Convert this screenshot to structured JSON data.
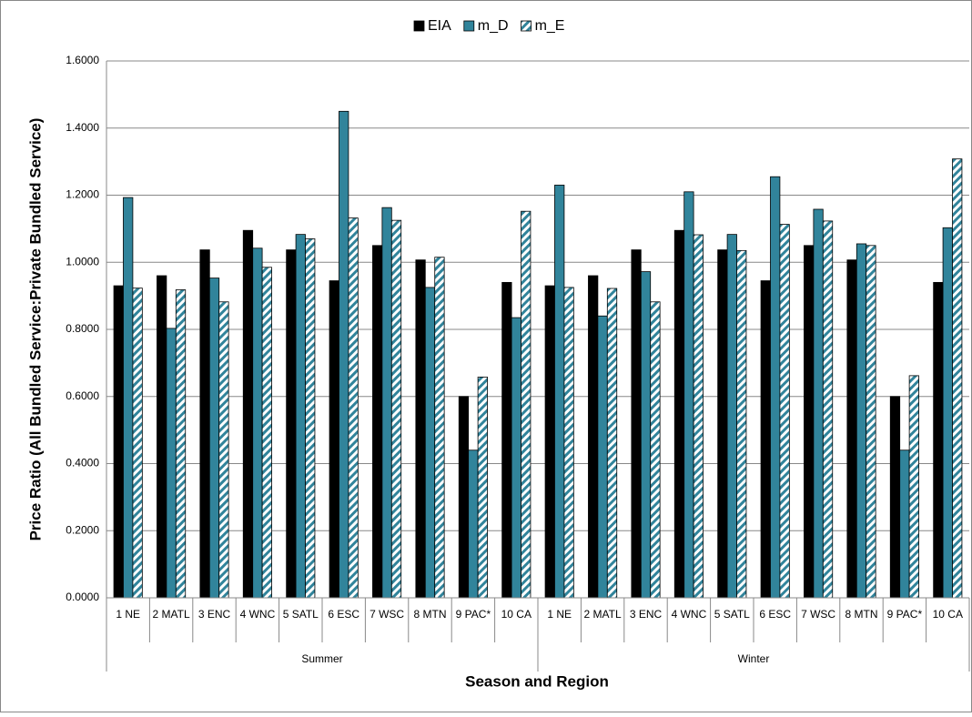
{
  "chart_data": {
    "type": "bar",
    "x_label": "Season and Region",
    "y_label": "Price Ratio (All Bundled Service:Private Bundled Service)",
    "x_groups": [
      "Summer",
      "Winter"
    ],
    "categories": [
      "1 NE",
      "2 MATL",
      "3 ENC",
      "4 WNC",
      "5 SATL",
      "6 ESC",
      "7 WSC",
      "8 MTN",
      "9 PAC*",
      "10 CA",
      "1 NE",
      "2 MATL",
      "3 ENC",
      "4 WNC",
      "5 SATL",
      "6 ESC",
      "7 WSC",
      "8 MTN",
      "9 PAC*",
      "10 CA"
    ],
    "series": [
      {
        "name": "EIA",
        "color": "#000000",
        "values": [
          0.93,
          0.96,
          1.037,
          1.095,
          1.037,
          0.945,
          1.05,
          1.007,
          0.6,
          0.94,
          0.93,
          0.96,
          1.037,
          1.095,
          1.037,
          0.945,
          1.05,
          1.007,
          0.6,
          0.94
        ]
      },
      {
        "name": "m_D",
        "color": "#31849b",
        "values": [
          1.193,
          0.803,
          0.953,
          1.042,
          1.083,
          1.45,
          1.163,
          0.925,
          0.44,
          0.835,
          1.23,
          0.84,
          0.972,
          1.21,
          1.083,
          1.255,
          1.158,
          1.055,
          0.44,
          1.103
        ]
      },
      {
        "name": "m_E",
        "color": "#31849b",
        "pattern": "hatch",
        "values": [
          0.923,
          0.918,
          0.882,
          0.985,
          1.07,
          1.132,
          1.125,
          1.015,
          0.658,
          1.152,
          0.925,
          0.922,
          0.882,
          1.082,
          1.035,
          1.113,
          1.123,
          1.05,
          0.662,
          1.308
        ]
      }
    ],
    "ylim": [
      0,
      1.6
    ],
    "yticks": [
      {
        "value": 0,
        "label": "0.0000"
      },
      {
        "value": 0.2,
        "label": "0.2000"
      },
      {
        "value": 0.4,
        "label": "0.4000"
      },
      {
        "value": 0.6,
        "label": "0.6000"
      },
      {
        "value": 0.8,
        "label": "0.8000"
      },
      {
        "value": 1.0,
        "label": "1.0000"
      },
      {
        "value": 1.2,
        "label": "1.2000"
      },
      {
        "value": 1.4,
        "label": "1.4000"
      },
      {
        "value": 1.6,
        "label": "1.6000"
      }
    ],
    "grid": true,
    "legend": "top"
  }
}
